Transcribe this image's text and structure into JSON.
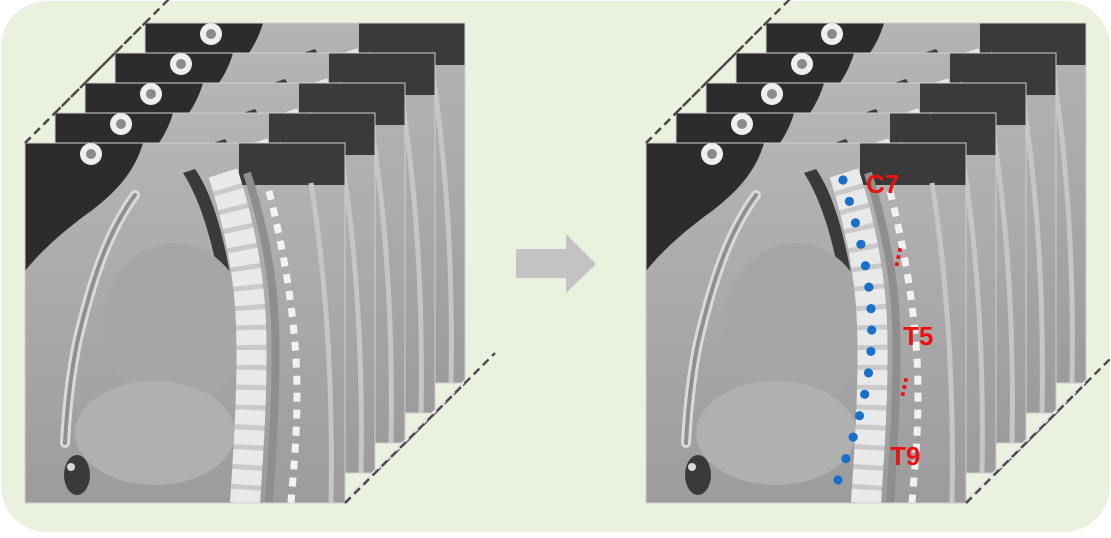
{
  "colors": {
    "panel_bg": "#eaf1df",
    "arrow": "#c3c3c3",
    "marker": "#1a6fc8",
    "label": "#ee1111",
    "slice_bg": "#a9a9a9"
  },
  "left_stack": {
    "slice_count": 5
  },
  "arrow": {
    "icon": "right-arrow-icon"
  },
  "right_stack": {
    "slice_count": 5,
    "labels": {
      "top": "C7",
      "middle": "T5",
      "bottom": "T9"
    },
    "ellipsis": "...",
    "vertebra_markers": 15
  }
}
